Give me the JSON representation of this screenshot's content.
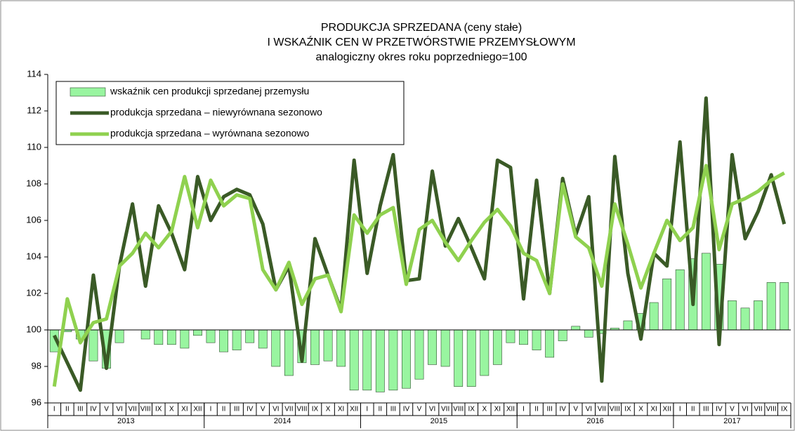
{
  "chart_data": {
    "type": "bar_line",
    "title": [
      "PRODUKCJA SPRZEDANA (ceny stałe)",
      "I WSKAŹNIK CEN W PRZETWÓRSTWIE PRZEMYSŁOWYM",
      "analogiczny okres roku poprzedniego=100"
    ],
    "categories": [
      "I",
      "II",
      "III",
      "IV",
      "V",
      "VI",
      "VII",
      "VIII",
      "IX",
      "X",
      "XI",
      "XII",
      "I",
      "II",
      "III",
      "IV",
      "V",
      "VI",
      "VII",
      "VIII",
      "IX",
      "X",
      "XI",
      "XII",
      "I",
      "II",
      "III",
      "IV",
      "V",
      "VI",
      "VII",
      "VIII",
      "IX",
      "X",
      "XI",
      "XII",
      "I",
      "II",
      "III",
      "IV",
      "V",
      "VI",
      "VII",
      "VIII",
      "IX",
      "X",
      "XI",
      "XII",
      "I",
      "II",
      "III",
      "IV",
      "V",
      "VI",
      "VII",
      "VIII",
      "IX"
    ],
    "years": [
      "2013",
      "2014",
      "2015",
      "2016",
      "2017"
    ],
    "ylim": [
      96,
      114
    ],
    "yticks": [
      96,
      98,
      100,
      102,
      104,
      106,
      108,
      110,
      112,
      114
    ],
    "baseline": 100,
    "grid": false,
    "legend": "top-left",
    "series": [
      {
        "name": "wskaźnik cen produkcji sprzedanej przemysłu",
        "kind": "bar",
        "color": "#99f5a0",
        "values": [
          98.8,
          99.9,
          99.5,
          98.3,
          97.9,
          99.3,
          100.0,
          99.5,
          99.2,
          99.2,
          99.0,
          99.7,
          99.3,
          98.8,
          98.9,
          99.3,
          99.0,
          98.0,
          97.5,
          98.2,
          98.1,
          98.3,
          98.0,
          96.7,
          96.7,
          96.6,
          96.7,
          96.8,
          97.3,
          98.1,
          98.0,
          96.9,
          96.9,
          97.5,
          98.1,
          99.3,
          99.2,
          98.9,
          98.5,
          99.4,
          100.2,
          99.6,
          99.8,
          100.1,
          100.5,
          100.9,
          101.5,
          102.8,
          103.3,
          103.9,
          104.2,
          103.6,
          101.6,
          101.2,
          101.6,
          102.6,
          102.6
        ]
      },
      {
        "name": "produkcja sprzedana – niewyrównana sezonowo",
        "kind": "line",
        "color": "#3a5a26",
        "values": [
          99.7,
          98.2,
          96.7,
          103.0,
          97.9,
          103.5,
          106.9,
          102.4,
          106.8,
          105.3,
          103.3,
          108.4,
          106.0,
          107.3,
          107.7,
          107.4,
          105.8,
          102.2,
          103.5,
          98.3,
          105.0,
          103.0,
          101.1,
          109.3,
          103.1,
          106.8,
          109.6,
          102.7,
          102.8,
          108.7,
          104.6,
          106.1,
          104.5,
          102.8,
          109.3,
          108.9,
          101.7,
          108.2,
          102.0,
          108.3,
          105.2,
          107.3,
          97.2,
          109.5,
          103.1,
          99.5,
          104.2,
          103.5,
          110.3,
          101.4,
          112.7,
          99.2,
          109.6,
          105.0,
          106.5,
          108.5,
          105.8
        ]
      },
      {
        "name": "produkcja sprzedana – wyrównana sezonowo",
        "kind": "line",
        "color": "#8fd14f",
        "values": [
          96.9,
          101.7,
          99.3,
          100.4,
          100.6,
          103.5,
          104.2,
          105.3,
          104.5,
          105.4,
          108.4,
          105.6,
          108.2,
          106.8,
          107.4,
          107.2,
          103.3,
          102.2,
          103.7,
          101.4,
          102.8,
          103.0,
          101.0,
          106.3,
          105.3,
          106.3,
          106.7,
          102.5,
          105.5,
          106.0,
          104.8,
          103.8,
          104.9,
          105.9,
          106.6,
          105.7,
          104.2,
          103.8,
          102.0,
          108.0,
          105.1,
          104.5,
          102.4,
          106.9,
          104.7,
          102.3,
          104.2,
          106.0,
          104.9,
          105.6,
          109.0,
          104.4,
          106.9,
          107.2,
          107.6,
          108.2,
          108.6
        ]
      }
    ]
  }
}
